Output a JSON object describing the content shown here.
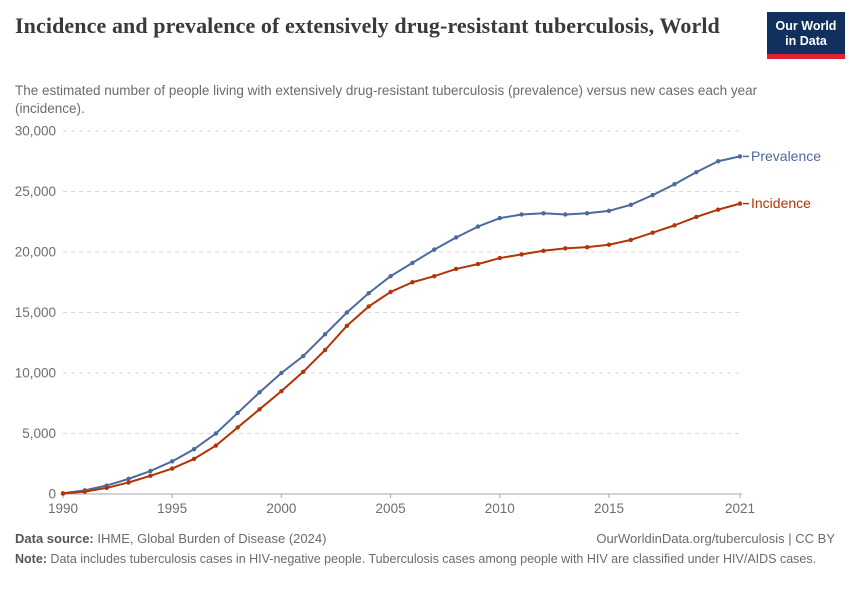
{
  "header": {
    "title": "Incidence and prevalence of extensively drug-resistant tuberculosis, World",
    "subtitle": "The estimated number of people living with extensively drug-resistant tuberculosis (prevalence) versus new cases each year (incidence).",
    "logo_line1": "Our World",
    "logo_line2": "in Data",
    "logo_bg_color": "#12305e",
    "logo_bar_color": "#dc2233"
  },
  "chart_data": {
    "type": "line",
    "title": "Incidence and prevalence of extensively drug-resistant tuberculosis, World",
    "xlabel": "",
    "ylabel": "",
    "x": [
      1990,
      1991,
      1992,
      1993,
      1994,
      1995,
      1996,
      1997,
      1998,
      1999,
      2000,
      2001,
      2002,
      2003,
      2004,
      2005,
      2006,
      2007,
      2008,
      2009,
      2010,
      2011,
      2012,
      2013,
      2014,
      2015,
      2016,
      2017,
      2018,
      2019,
      2020,
      2021
    ],
    "series": [
      {
        "name": "Prevalence",
        "color": "#4C6A9C",
        "values": [
          60,
          300,
          700,
          1250,
          1900,
          2700,
          3700,
          5000,
          6700,
          8400,
          10000,
          11400,
          13200,
          15000,
          16600,
          18000,
          19100,
          20200,
          21200,
          22100,
          22800,
          23100,
          23200,
          23100,
          23200,
          23400,
          23900,
          24700,
          25600,
          26600,
          27500,
          27900
        ]
      },
      {
        "name": "Incidence",
        "color": "#B13507",
        "values": [
          40,
          200,
          500,
          950,
          1500,
          2100,
          2900,
          4000,
          5500,
          7000,
          8500,
          10100,
          11900,
          13900,
          15500,
          16700,
          17500,
          18000,
          18600,
          19000,
          19500,
          19800,
          20100,
          20300,
          20400,
          20600,
          21000,
          21600,
          22200,
          22900,
          23500,
          24000
        ]
      }
    ],
    "xlim": [
      1990,
      2021
    ],
    "ylim": [
      0,
      30000
    ],
    "xticks": [
      1990,
      1995,
      2000,
      2005,
      2010,
      2015,
      2021
    ],
    "yticks": [
      0,
      5000,
      10000,
      15000,
      20000,
      25000,
      30000
    ],
    "grid": "horizontal-dashed",
    "legend_position": "line-end-labels",
    "marker": "dot"
  },
  "footer": {
    "data_source_label": "Data source:",
    "data_source": " IHME, Global Burden of Disease (2024)",
    "link": "OurWorldinData.org/tuberculosis | CC BY",
    "note_label": "Note:",
    "note": " Data includes tuberculosis cases in HIV-negative people. Tuberculosis cases among people with HIV are classified under HIV/AIDS cases."
  }
}
